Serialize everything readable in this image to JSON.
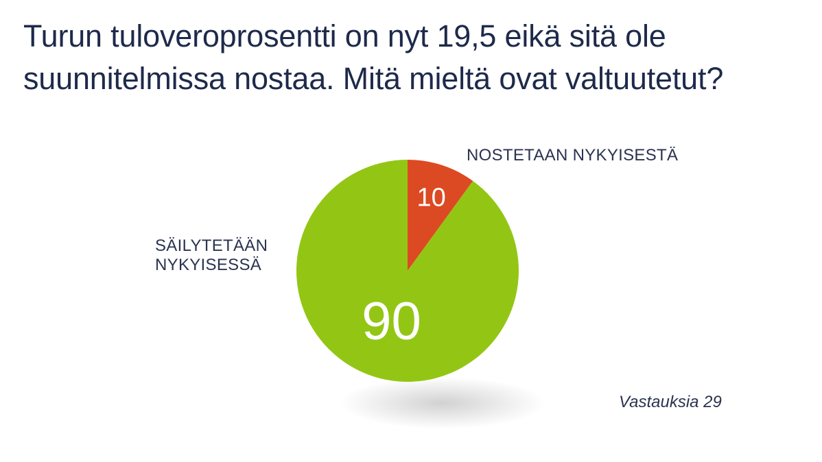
{
  "title_lines": [
    "Turun tuloveroprosentti on nyt 19,5 eikä sitä ole",
    "suunnitelmissa nostaa. Mitä mieltä ovat valtuutetut?"
  ],
  "footnote": "Vastauksia 29",
  "chart_data": {
    "type": "pie",
    "title": "Turun tuloveroprosentti on nyt 19,5 eikä sitä ole suunnitelmissa nostaa. Mitä mieltä ovat valtuutetut?",
    "slices": [
      {
        "label_lines": [
          "NOSTETAAN NYKYISESTÄ"
        ],
        "value": 10,
        "value_label": "10",
        "color": "#dc4a23"
      },
      {
        "label_lines": [
          "SÄILYTETÄÄN",
          "NYKYISESSÄ"
        ],
        "value": 90,
        "value_label": "90",
        "color": "#93c614"
      }
    ],
    "start_angle": "12 o'clock",
    "direction": "clockwise",
    "shadow": true
  }
}
